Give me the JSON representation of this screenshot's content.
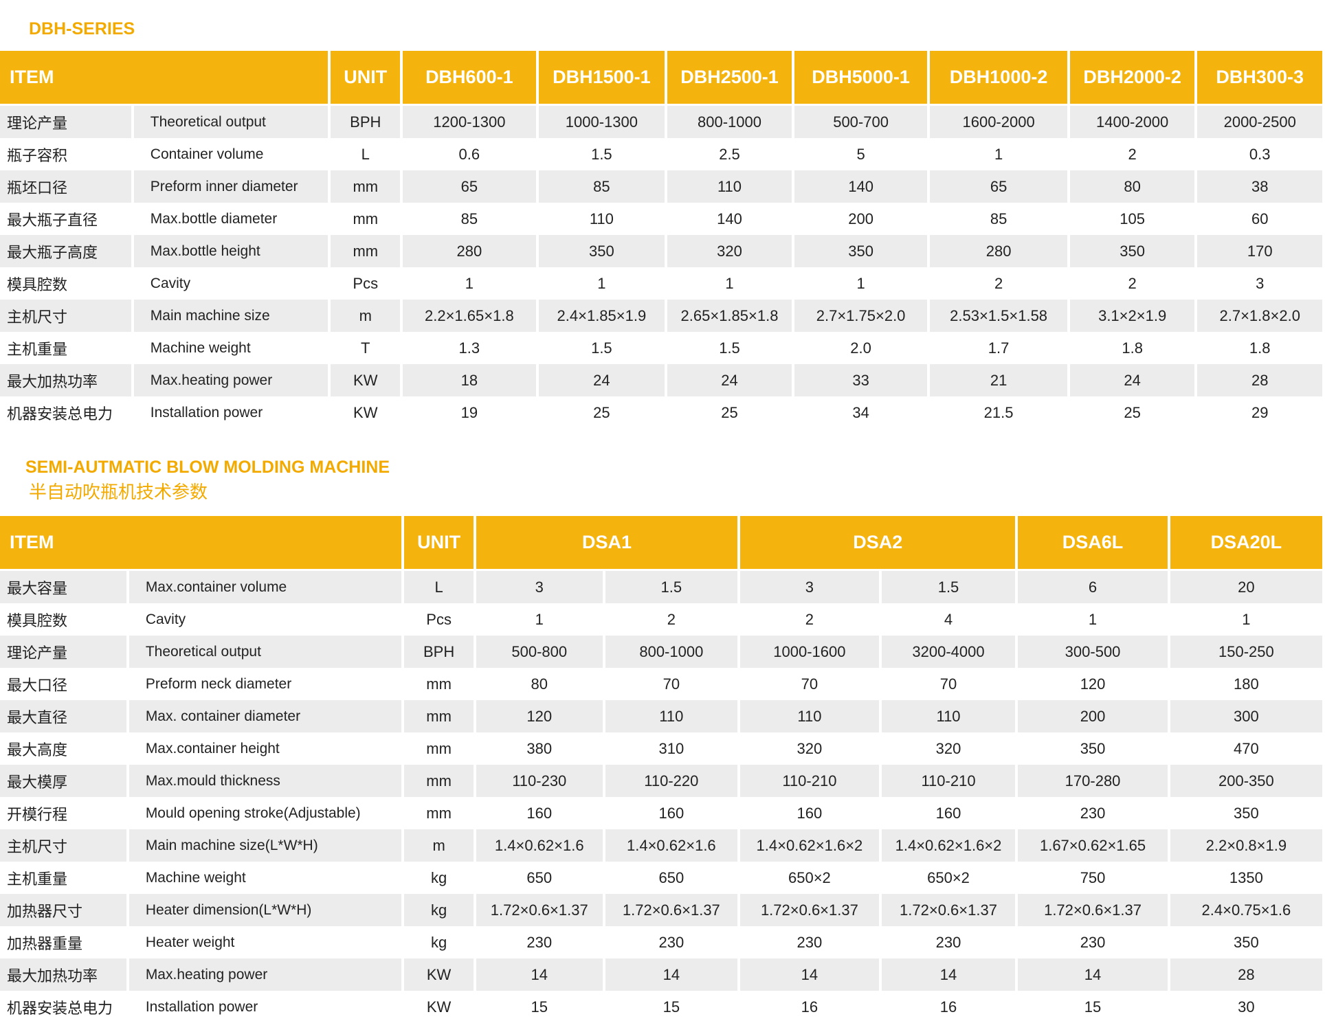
{
  "section1": {
    "title": "DBH-SERIES",
    "table": {
      "header": [
        "ITEM",
        "UNIT",
        "DBH600-1",
        "DBH1500-1",
        "DBH2500-1",
        "DBH5000-1",
        "DBH1000-2",
        "DBH2000-2",
        "DBH300-3"
      ],
      "rows": [
        [
          "理论产量",
          "Theoretical  output",
          "BPH",
          "1200-1300",
          "1000-1300",
          "800-1000",
          "500-700",
          "1600-2000",
          "1400-2000",
          "2000-2500"
        ],
        [
          "瓶子容积",
          "Container volume",
          "L",
          "0.6",
          "1.5",
          "2.5",
          "5",
          "1",
          "2",
          "0.3"
        ],
        [
          "瓶坯口径",
          "Preform inner diameter",
          "mm",
          "65",
          "85",
          "110",
          "140",
          "65",
          "80",
          "38"
        ],
        [
          "最大瓶子直径",
          "Max.bottle diameter",
          "mm",
          "85",
          "110",
          "140",
          "200",
          "85",
          "105",
          "60"
        ],
        [
          "最大瓶子高度",
          "Max.bottle height",
          "mm",
          "280",
          "350",
          "320",
          "350",
          "280",
          "350",
          "170"
        ],
        [
          "模具腔数",
          "Cavity",
          "Pcs",
          "1",
          "1",
          "1",
          "1",
          "2",
          "2",
          "3"
        ],
        [
          "主机尺寸",
          "Main machine size",
          "m",
          "2.2×1.65×1.8",
          "2.4×1.85×1.9",
          "2.65×1.85×1.8",
          "2.7×1.75×2.0",
          "2.53×1.5×1.58",
          "3.1×2×1.9",
          "2.7×1.8×2.0"
        ],
        [
          "主机重量",
          "Machine weight",
          "T",
          "1.3",
          "1.5",
          "1.5",
          "2.0",
          "1.7",
          "1.8",
          "1.8"
        ],
        [
          "最大加热功率",
          "Max.heating power",
          "KW",
          "18",
          "24",
          "24",
          "33",
          "21",
          "24",
          "28"
        ],
        [
          "机器安装总电力",
          "Installation power",
          "KW",
          "19",
          "25",
          "25",
          "34",
          "21.5",
          "25",
          "29"
        ]
      ]
    }
  },
  "section2": {
    "title": "SEMI-AUTMATIC BLOW MOLDING MACHINE",
    "subtitle": "半自动吹瓶机技术参数",
    "table": {
      "header": [
        "ITEM",
        "UNIT",
        "DSA1",
        "DSA2",
        "DSA6L",
        "DSA20L"
      ],
      "rows": [
        [
          "最大容量",
          "Max.container volume",
          "L",
          "3",
          "1.5",
          "3",
          "1.5",
          "6",
          "20"
        ],
        [
          "模具腔数",
          "Cavity",
          "Pcs",
          "1",
          "2",
          "2",
          "4",
          "1",
          "1"
        ],
        [
          "理论产量",
          "Theoretical  output",
          "BPH",
          "500-800",
          "800-1000",
          "1000-1600",
          "3200-4000",
          "300-500",
          "150-250"
        ],
        [
          "最大口径",
          "Preform neck diameter",
          "mm",
          "80",
          "70",
          "70",
          "70",
          "120",
          "180"
        ],
        [
          "最大直径",
          "Max. container   diameter",
          "mm",
          "120",
          "110",
          "110",
          "110",
          "200",
          "300"
        ],
        [
          "最大高度",
          "Max.container height",
          "mm",
          "380",
          "310",
          "320",
          "320",
          "350",
          "470"
        ],
        [
          "最大模厚",
          "Max.mould thickness",
          "mm",
          "110-230",
          "110-220",
          "110-210",
          "110-210",
          "170-280",
          "200-350"
        ],
        [
          "开模行程",
          "Mould opening stroke(Adjustable)",
          "mm",
          "160",
          "160",
          "160",
          "160",
          "230",
          "350"
        ],
        [
          "主机尺寸",
          "Main machine size(L*W*H)",
          "m",
          "1.4×0.62×1.6",
          "1.4×0.62×1.6",
          "1.4×0.62×1.6×2",
          "1.4×0.62×1.6×2",
          "1.67×0.62×1.65",
          "2.2×0.8×1.9"
        ],
        [
          "主机重量",
          "Machine weight",
          "kg",
          "650",
          "650",
          "650×2",
          "650×2",
          "750",
          "1350"
        ],
        [
          "加热器尺寸",
          "Heater dimension(L*W*H)",
          "kg",
          "1.72×0.6×1.37",
          "1.72×0.6×1.37",
          "1.72×0.6×1.37",
          "1.72×0.6×1.37",
          "1.72×0.6×1.37",
          "2.4×0.75×1.6"
        ],
        [
          "加热器重量",
          "Heater weight",
          "kg",
          "230",
          "230",
          "230",
          "230",
          "230",
          "350"
        ],
        [
          "最大加热功率",
          "Max.heating power",
          "KW",
          "14",
          "14",
          "14",
          "14",
          "14",
          "28"
        ],
        [
          "机器安装总电力",
          "Installation power",
          "KW",
          "15",
          "15",
          "16",
          "16",
          "15",
          "30"
        ]
      ]
    }
  }
}
